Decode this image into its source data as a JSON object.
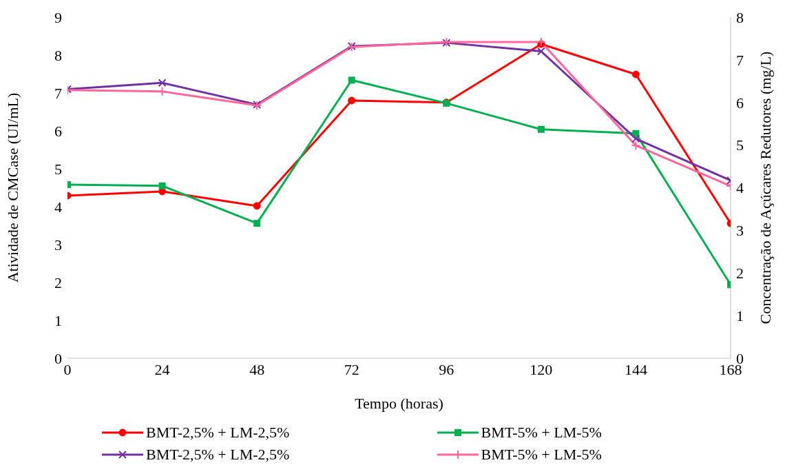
{
  "chart_data": {
    "type": "line",
    "xlabel": "Tempo (horas)",
    "ylabel": "Atividade de CMCase (UI/mL)",
    "y2label": "Concentração de Açúcares Redutores  (mg/L)",
    "x": [
      0,
      24,
      48,
      72,
      96,
      120,
      144,
      168
    ],
    "xlim": [
      0,
      168
    ],
    "xticks": [
      0,
      24,
      48,
      72,
      96,
      120,
      144,
      168
    ],
    "ylim": [
      0,
      9
    ],
    "yticks": [
      0,
      1,
      2,
      3,
      4,
      5,
      6,
      7,
      8,
      9
    ],
    "y2lim": [
      0,
      8
    ],
    "y2ticks": [
      0,
      1,
      2,
      3,
      4,
      5,
      6,
      7,
      8
    ],
    "grid": false,
    "legend": "bottom",
    "series": [
      {
        "name": "BMT-2,5% + LM-2,5%",
        "color": "#ff0000",
        "marker": "circle",
        "values": [
          4.29,
          4.4,
          4.02,
          6.8,
          6.75,
          8.29,
          7.49,
          3.56
        ]
      },
      {
        "name": "BMT-5% + LM-5%",
        "color": "#00b050",
        "marker": "square",
        "values": [
          4.58,
          4.55,
          3.56,
          7.34,
          6.73,
          6.04,
          5.93,
          1.94
        ]
      },
      {
        "name": "BMT-2,5% + LM-2,5%",
        "color": "#7030a0",
        "marker": "cross",
        "axis": "y2",
        "values": [
          6.31,
          6.46,
          5.95,
          7.32,
          7.4,
          7.2,
          5.15,
          4.17
        ]
      },
      {
        "name": "BMT-5% + LM-5%",
        "color": "#ff6699",
        "marker": "plus",
        "axis": "y2",
        "values": [
          6.29,
          6.26,
          5.93,
          7.3,
          7.42,
          7.42,
          4.99,
          4.04
        ]
      }
    ]
  }
}
